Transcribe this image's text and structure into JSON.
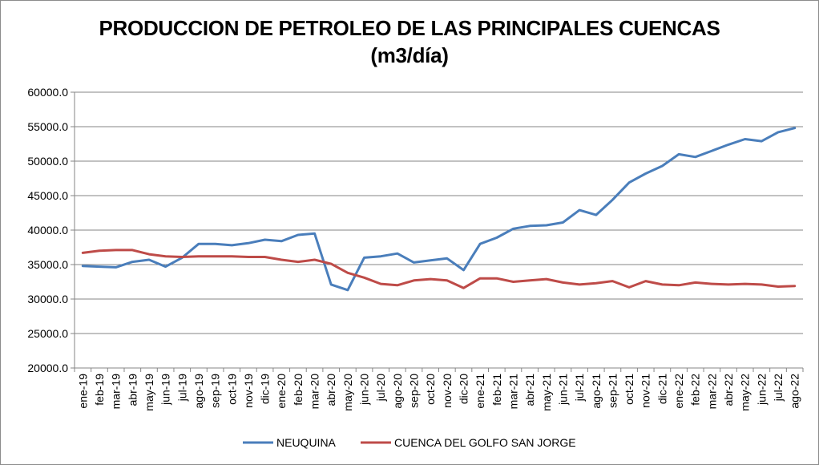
{
  "chart_data": {
    "type": "line",
    "title": "PRODUCCION DE PETROLEO DE LAS PRINCIPALES CUENCAS",
    "subtitle": "(m3/día)",
    "xlabel": "",
    "ylabel": "",
    "ylim": [
      20000,
      60000
    ],
    "yticks": [
      "20000.0",
      "25000.0",
      "30000.0",
      "35000.0",
      "40000.0",
      "45000.0",
      "50000.0",
      "55000.0",
      "60000.0"
    ],
    "grid": true,
    "legend": "bottom",
    "categories": [
      "ene-19",
      "feb-19",
      "mar-19",
      "abr-19",
      "may-19",
      "jun-19",
      "jul-19",
      "ago-19",
      "sep-19",
      "oct-19",
      "nov-19",
      "dic-19",
      "ene-20",
      "feb-20",
      "mar-20",
      "abr-20",
      "may-20",
      "jun-20",
      "jul-20",
      "ago-20",
      "sep-20",
      "oct-20",
      "nov-20",
      "dic-20",
      "ene-21",
      "feb-21",
      "mar-21",
      "abr-21",
      "may-21",
      "jun-21",
      "jul-21",
      "ago-21",
      "sep-21",
      "oct-21",
      "nov-21",
      "dic-21",
      "ene-22",
      "feb-22",
      "mar-22",
      "abr-22",
      "may-22",
      "jun-22",
      "jul-22",
      "ago-22"
    ],
    "series": [
      {
        "name": "NEUQUINA",
        "color": "#4a7ebb",
        "values": [
          34800,
          34700,
          34600,
          35400,
          35700,
          34700,
          36000,
          38000,
          38000,
          37800,
          38100,
          38600,
          38400,
          39300,
          39500,
          32100,
          31300,
          36000,
          36200,
          36600,
          35300,
          35600,
          35900,
          34200,
          38000,
          38900,
          40200,
          40600,
          40700,
          41100,
          42900,
          42200,
          44400,
          46900,
          48200,
          49300,
          51000,
          50600,
          51500,
          52400,
          53200,
          52900,
          54200,
          54800
        ]
      },
      {
        "name": "CUENCA DEL GOLFO SAN JORGE",
        "color": "#be4b48",
        "values": [
          36700,
          37000,
          37100,
          37100,
          36500,
          36200,
          36100,
          36200,
          36200,
          36200,
          36100,
          36100,
          35700,
          35400,
          35700,
          35100,
          33800,
          33100,
          32200,
          32000,
          32700,
          32900,
          32700,
          31600,
          33000,
          33000,
          32500,
          32700,
          32900,
          32400,
          32100,
          32300,
          32600,
          31700,
          32600,
          32100,
          32000,
          32400,
          32200,
          32100,
          32200,
          32100,
          31800,
          31900
        ]
      }
    ]
  }
}
